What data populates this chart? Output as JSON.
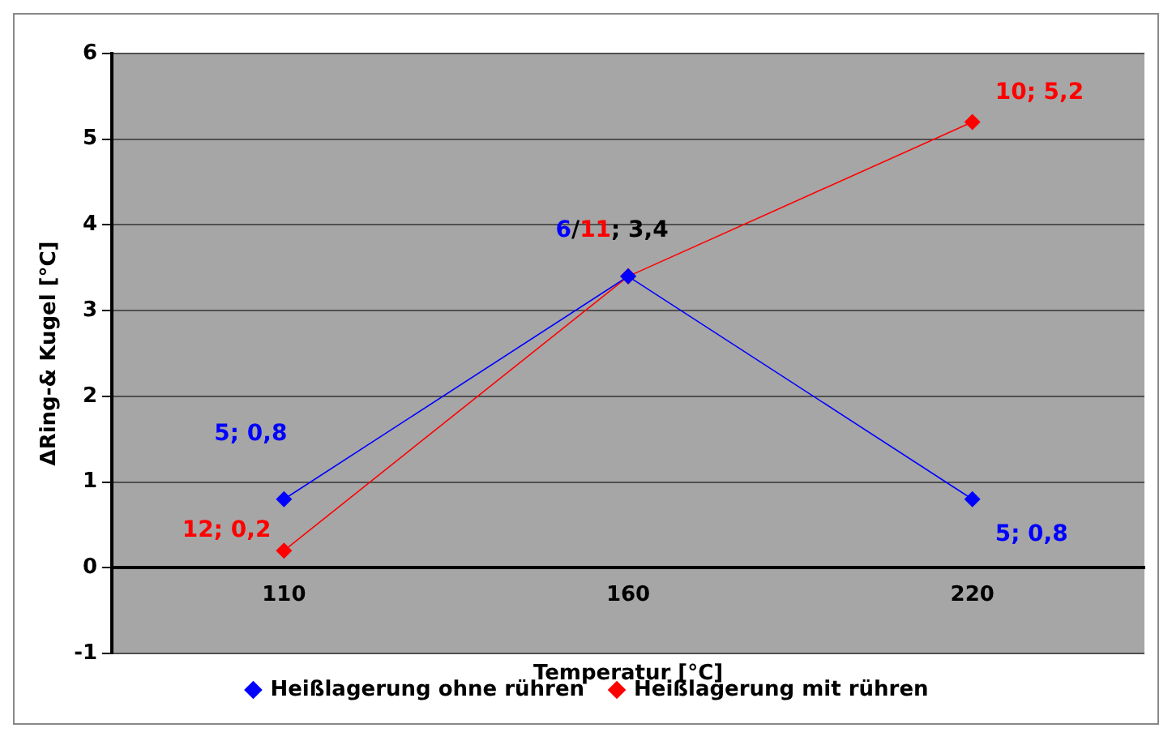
{
  "chart_data": {
    "type": "line",
    "xlabel": "Temperatur [°C]",
    "ylabel": "ΔRing-& Kugel [°C]",
    "categories": [
      "110",
      "160",
      "220"
    ],
    "series": [
      {
        "name": "Heißlagerung ohne rühren",
        "color": "#0000ff",
        "values": [
          0.8,
          3.4,
          0.8
        ],
        "value_labels": [
          "5; 0,8",
          null,
          "5; 0,8"
        ]
      },
      {
        "name": "Heißlagerung mit rühren",
        "color": "#ff0000",
        "values": [
          0.2,
          3.4,
          5.2
        ],
        "value_labels": [
          "12; 0,2",
          null,
          "10; 5,2"
        ]
      }
    ],
    "annotations": [
      {
        "text": "6/11; 3,4",
        "x": "160",
        "y": 3.4
      }
    ],
    "ylim": [
      -1,
      6
    ],
    "yticks": [
      -1,
      0,
      1,
      2,
      3,
      4,
      5,
      6
    ],
    "grid": "y",
    "legend": "bottom",
    "marker": "diamond",
    "line_style": "solid"
  }
}
